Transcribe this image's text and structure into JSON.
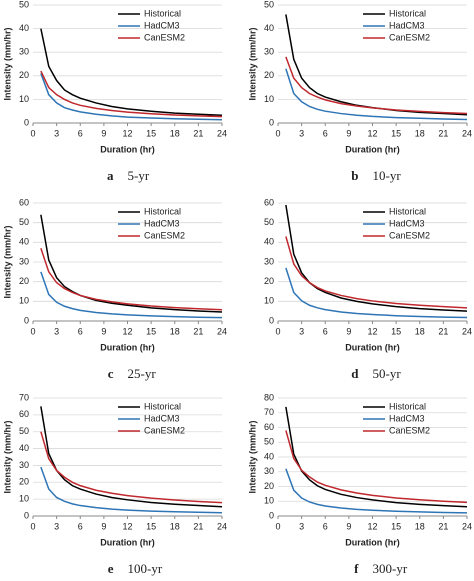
{
  "chart_data": [
    {
      "type": "line",
      "panel_label": "a",
      "title": "5-yr",
      "xlabel": "Duration (hr)",
      "ylabel": "Intensity (mm/hr)",
      "x": [
        1,
        2,
        3,
        4,
        5,
        6,
        8,
        10,
        12,
        15,
        18,
        21,
        24
      ],
      "xlim": [
        0,
        24
      ],
      "xticks": [
        0,
        3,
        6,
        9,
        12,
        15,
        18,
        21,
        24
      ],
      "ylim": [
        0,
        50
      ],
      "yticks": [
        0,
        10,
        20,
        30,
        40,
        50
      ],
      "series": [
        {
          "name": "Historical",
          "color": "#000000",
          "values": [
            40,
            24,
            18,
            14,
            12,
            10.5,
            8.5,
            7,
            6,
            5,
            4.2,
            3.7,
            3.3
          ]
        },
        {
          "name": "HadCM3",
          "color": "#2e75b6",
          "values": [
            21,
            12,
            8.5,
            6.5,
            5.5,
            4.7,
            3.7,
            3,
            2.5,
            2.1,
            1.8,
            1.6,
            1.4
          ]
        },
        {
          "name": "CanESM2",
          "color": "#c0282d",
          "values": [
            22,
            15,
            12,
            10,
            8.5,
            7.5,
            6.2,
            5.3,
            4.6,
            3.9,
            3.4,
            3.0,
            2.7
          ]
        }
      ]
    },
    {
      "type": "line",
      "panel_label": "b",
      "title": "10-yr",
      "xlabel": "Duration (hr)",
      "ylabel": "Intensity (mm/hr)",
      "x": [
        1,
        2,
        3,
        4,
        5,
        6,
        8,
        10,
        12,
        15,
        18,
        21,
        24
      ],
      "xlim": [
        0,
        24
      ],
      "xticks": [
        0,
        3,
        6,
        9,
        12,
        15,
        18,
        21,
        24
      ],
      "ylim": [
        0,
        50
      ],
      "yticks": [
        0,
        10,
        20,
        30,
        40,
        50
      ],
      "series": [
        {
          "name": "Historical",
          "color": "#000000",
          "values": [
            46,
            27,
            19,
            15,
            12.5,
            11,
            9,
            7.5,
            6.5,
            5.3,
            4.5,
            4,
            3.5
          ]
        },
        {
          "name": "HadCM3",
          "color": "#2e75b6",
          "values": [
            23,
            12.5,
            9,
            7,
            5.8,
            5,
            4,
            3.3,
            2.8,
            2.3,
            2,
            1.7,
            1.5
          ]
        },
        {
          "name": "CanESM2",
          "color": "#c0282d",
          "values": [
            28,
            19,
            15,
            12.5,
            11,
            9.8,
            8.2,
            7.2,
            6.4,
            5.5,
            4.9,
            4.4,
            4.0
          ]
        }
      ]
    },
    {
      "type": "line",
      "panel_label": "c",
      "title": "25-yr",
      "xlabel": "Duration (hr)",
      "ylabel": "Intensity (mm/hr)",
      "x": [
        1,
        2,
        3,
        4,
        5,
        6,
        8,
        10,
        12,
        15,
        18,
        21,
        24
      ],
      "xlim": [
        0,
        24
      ],
      "xticks": [
        0,
        3,
        6,
        9,
        12,
        15,
        18,
        21,
        24
      ],
      "ylim": [
        0,
        60
      ],
      "yticks": [
        0,
        10,
        20,
        30,
        40,
        50,
        60
      ],
      "series": [
        {
          "name": "Historical",
          "color": "#000000",
          "values": [
            54,
            31,
            22,
            17.5,
            15,
            13,
            10.5,
            9,
            8,
            6.7,
            5.8,
            5.1,
            4.6
          ]
        },
        {
          "name": "HadCM3",
          "color": "#2e75b6",
          "values": [
            25,
            13.5,
            9.5,
            7.5,
            6.3,
            5.4,
            4.3,
            3.6,
            3.1,
            2.6,
            2.2,
            1.9,
            1.7
          ]
        },
        {
          "name": "CanESM2",
          "color": "#c0282d",
          "values": [
            37,
            25,
            19.5,
            16.5,
            14.5,
            13,
            11,
            9.7,
            8.7,
            7.6,
            6.8,
            6.2,
            5.7
          ]
        }
      ]
    },
    {
      "type": "line",
      "panel_label": "d",
      "title": "50-yr",
      "xlabel": "Duration (hr)",
      "x": [
        1,
        2,
        3,
        4,
        5,
        6,
        8,
        10,
        12,
        15,
        18,
        21,
        24
      ],
      "xlim": [
        0,
        24
      ],
      "xticks": [
        0,
        3,
        6,
        9,
        12,
        15,
        18,
        21,
        24
      ],
      "ylim": [
        0,
        60
      ],
      "yticks": [
        0,
        10,
        20,
        30,
        40,
        50,
        60
      ],
      "series": [
        {
          "name": "Historical",
          "color": "#000000",
          "values": [
            59,
            34,
            24.5,
            19.5,
            16.5,
            14.5,
            11.7,
            10,
            8.7,
            7.3,
            6.3,
            5.6,
            5
          ]
        },
        {
          "name": "HadCM3",
          "color": "#2e75b6",
          "values": [
            27,
            14.5,
            10.3,
            8,
            6.7,
            5.8,
            4.6,
            3.8,
            3.3,
            2.7,
            2.3,
            2.0,
            1.8
          ]
        },
        {
          "name": "CanESM2",
          "color": "#c0282d",
          "values": [
            43,
            29,
            23,
            19.5,
            17,
            15.3,
            13,
            11.4,
            10.2,
            8.9,
            8,
            7.3,
            6.7
          ]
        }
      ]
    },
    {
      "type": "line",
      "panel_label": "e",
      "title": "100-yr",
      "xlabel": "Duration (hr)",
      "ylabel": "Intensity (mm/hr)",
      "x": [
        1,
        2,
        3,
        4,
        5,
        6,
        8,
        10,
        12,
        15,
        18,
        21,
        24
      ],
      "xlim": [
        0,
        24
      ],
      "xticks": [
        0,
        3,
        6,
        9,
        12,
        15,
        18,
        21,
        24
      ],
      "ylim": [
        0,
        70
      ],
      "yticks": [
        0,
        10,
        20,
        30,
        40,
        50,
        60,
        70
      ],
      "series": [
        {
          "name": "Historical",
          "color": "#000000",
          "values": [
            65,
            37,
            27,
            21.5,
            18,
            16,
            13,
            11,
            9.6,
            8,
            7,
            6.2,
            5.5
          ]
        },
        {
          "name": "HadCM3",
          "color": "#2e75b6",
          "values": [
            29,
            16,
            11,
            8.7,
            7.2,
            6.2,
            5,
            4.1,
            3.5,
            2.9,
            2.5,
            2.2,
            1.9
          ]
        },
        {
          "name": "CanESM2",
          "color": "#c0282d",
          "values": [
            50,
            34,
            27,
            23,
            20,
            18,
            15.3,
            13.5,
            12.1,
            10.6,
            9.5,
            8.6,
            7.9
          ]
        }
      ]
    },
    {
      "type": "line",
      "panel_label": "f",
      "title": "300-yr",
      "xlabel": "Duration (hr)",
      "ylabel": "Intensity (mm/hr)",
      "x": [
        1,
        2,
        3,
        4,
        5,
        6,
        8,
        10,
        12,
        15,
        18,
        21,
        24
      ],
      "xlim": [
        0,
        24
      ],
      "xticks": [
        0,
        3,
        6,
        9,
        12,
        15,
        18,
        21,
        24
      ],
      "ylim": [
        0,
        80
      ],
      "yticks": [
        0,
        10,
        20,
        30,
        40,
        50,
        60,
        70,
        80
      ],
      "series": [
        {
          "name": "Historical",
          "color": "#000000",
          "values": [
            74,
            42,
            30.5,
            24.5,
            20.5,
            18,
            14.7,
            12.5,
            10.9,
            9.1,
            7.9,
            7,
            6.3
          ]
        },
        {
          "name": "HadCM3",
          "color": "#2e75b6",
          "values": [
            32,
            17.5,
            12.2,
            9.5,
            7.9,
            6.8,
            5.4,
            4.5,
            3.9,
            3.2,
            2.8,
            2.4,
            2.1
          ]
        },
        {
          "name": "CanESM2",
          "color": "#c0282d",
          "values": [
            58,
            39,
            31,
            26.5,
            23,
            20.8,
            17.7,
            15.6,
            14,
            12.2,
            11,
            10,
            9.2
          ]
        }
      ]
    }
  ]
}
